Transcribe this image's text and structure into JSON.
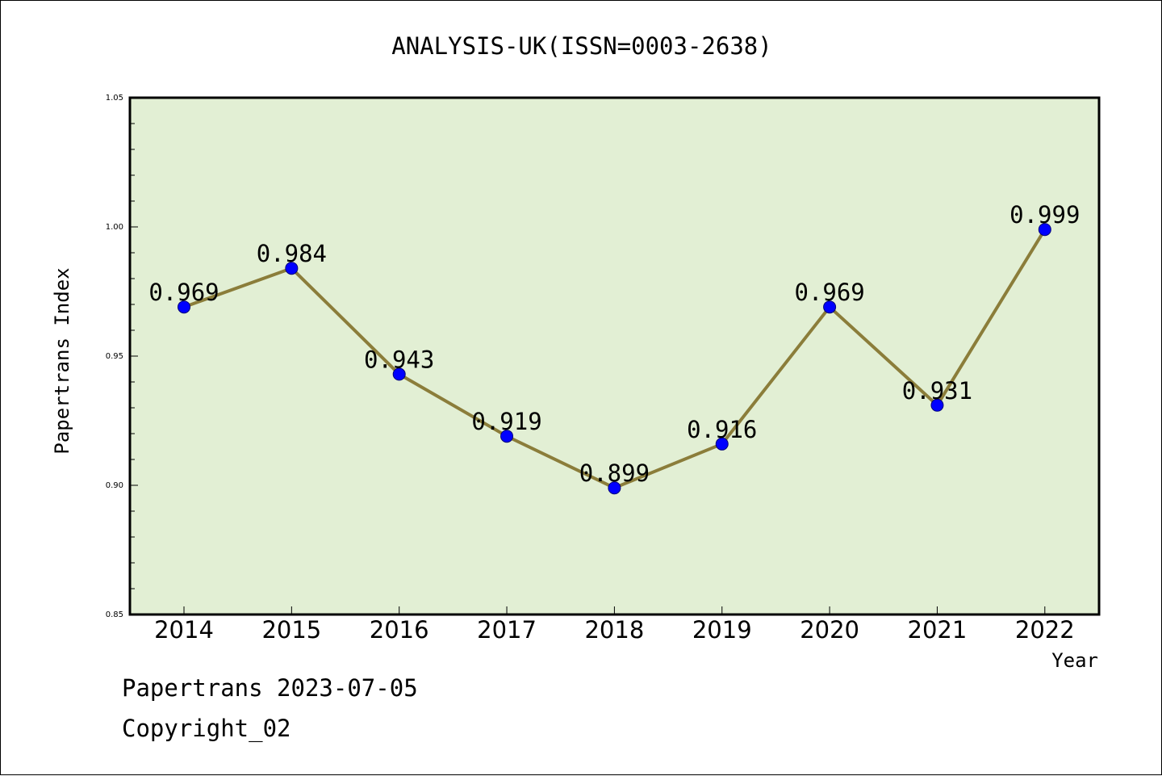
{
  "chart_data": {
    "type": "line",
    "title": "ANALYSIS-UK(ISSN=0003-2638)",
    "xlabel": "Year",
    "ylabel": "Papertrans Index",
    "categories": [
      "2014",
      "2015",
      "2016",
      "2017",
      "2018",
      "2019",
      "2020",
      "2021",
      "2022"
    ],
    "series": [
      {
        "values": [
          0.969,
          0.984,
          0.943,
          0.919,
          0.899,
          0.916,
          0.969,
          0.931,
          0.999
        ],
        "labels": [
          "0.969",
          "0.984",
          "0.943",
          "0.919",
          "0.899",
          "0.916",
          "0.969",
          "0.931",
          "0.999"
        ],
        "line_color": "#8b7d3a",
        "marker_color": "#0000ff"
      }
    ],
    "ylim": [
      0.85,
      1.05
    ],
    "yticks": [
      "0.85",
      "0.90",
      "0.95",
      "1.00",
      "1.05"
    ],
    "plot_background": "#e2efd4",
    "grid": false,
    "legend": "none"
  },
  "footer": {
    "line1": "Papertrans 2023-07-05",
    "line2": "Copyright_02"
  }
}
